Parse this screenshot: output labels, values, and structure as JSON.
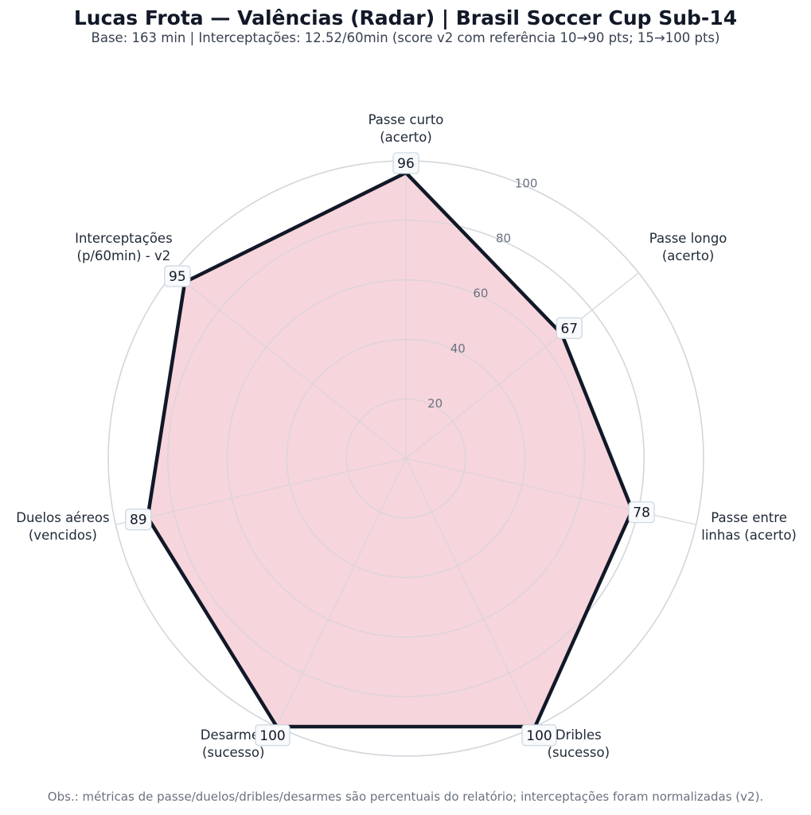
{
  "header": {
    "title": "Lucas Frota — Valências (Radar) | Brasil Soccer Cup Sub-14",
    "subtitle": "Base: 163 min | Interceptações: 12.52/60min  (score v2 com referência 10→90 pts; 15→100 pts)"
  },
  "footer": {
    "note": "Obs.: métricas de passe/duelos/dribles/desarmes são percentuais do relatório; interceptações foram normalizadas (v2)."
  },
  "colors": {
    "fill": "#f5d0d8",
    "stroke": "#111827",
    "grid": "#d1d5db",
    "label_box_border": "#cbd5e1",
    "label_box_bg": "#f8fafc"
  },
  "chart_data": {
    "type": "radar",
    "title": "Lucas Frota — Valências (Radar) | Brasil Soccer Cup Sub-14",
    "subtitle": "Base: 163 min | Interceptações: 12.52/60min  (score v2 com referência 10→90 pts; 15→100 pts)",
    "categories": [
      [
        "Passe curto",
        "(acerto)"
      ],
      [
        "Passe longo",
        "(acerto)"
      ],
      [
        "Passe entre",
        "linhas (acerto)"
      ],
      [
        "Dribles",
        "(sucesso)"
      ],
      [
        "Desarmes",
        "(sucesso)"
      ],
      [
        "Duelos aéreos",
        "(vencidos)"
      ],
      [
        "Interceptações",
        "(p/60min) - v2"
      ]
    ],
    "values": [
      96,
      67,
      78,
      100,
      100,
      89,
      95
    ],
    "rlim": [
      0,
      100
    ],
    "rticks": [
      20,
      40,
      60,
      80,
      100
    ],
    "grid": true,
    "legend": null
  }
}
